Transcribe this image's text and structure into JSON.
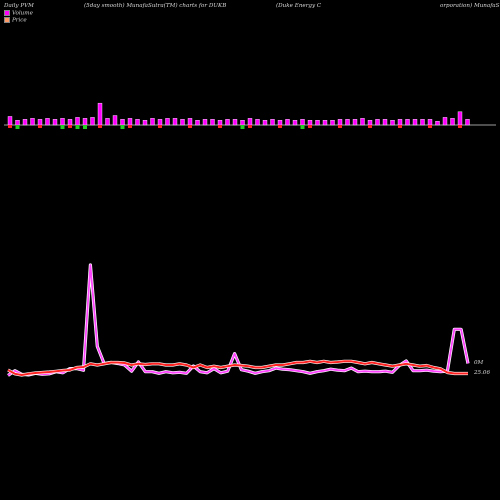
{
  "header": {
    "left": "Daily PVM",
    "center": "(5day smooth) MunafaSutra(TM) charts for DUKB",
    "right_a": "(Duke Energy C",
    "right_b": "orporation) MunafaS"
  },
  "legend": [
    {
      "label": "Volume",
      "color": "#ff00ff"
    },
    {
      "label": "Price",
      "color": "#ff9966"
    }
  ],
  "chart_data": {
    "type": "line",
    "volume_bars": {
      "heights": [
        9,
        5,
        6,
        7,
        6,
        7,
        6,
        7,
        6,
        8,
        7,
        8,
        23,
        7,
        10,
        6,
        7,
        6,
        5,
        7,
        6,
        7,
        7,
        6,
        7,
        5,
        6,
        6,
        5,
        6,
        6,
        5,
        7,
        6,
        5,
        6,
        5,
        6,
        5,
        6,
        5,
        5,
        5,
        5,
        6,
        6,
        6,
        7,
        5,
        6,
        6,
        5,
        6,
        6,
        6,
        6,
        6,
        4,
        8,
        7,
        14,
        6
      ],
      "down": [
        false,
        true,
        false,
        false,
        false,
        false,
        false,
        true,
        false,
        true,
        true,
        false,
        false,
        false,
        false,
        true,
        false,
        false,
        false,
        false,
        false,
        false,
        false,
        false,
        false,
        false,
        false,
        false,
        false,
        false,
        false,
        true,
        false,
        false,
        false,
        false,
        false,
        false,
        false,
        true,
        false,
        false,
        false,
        false,
        false,
        false,
        false,
        false,
        false,
        false,
        false,
        false,
        false,
        false,
        false,
        false,
        false,
        false,
        false,
        false,
        false,
        false
      ]
    },
    "series": [
      {
        "color": "#ff44ff",
        "values": [
          7,
          16,
          9,
          8,
          11,
          9,
          10,
          14,
          12,
          20,
          20,
          17,
          220,
          63,
          30,
          32,
          30,
          27,
          15,
          33,
          14,
          14,
          11,
          14,
          12,
          13,
          11,
          25,
          14,
          12,
          20,
          12,
          15,
          49,
          18,
          15,
          11,
          14,
          16,
          21,
          19,
          18,
          16,
          14,
          11,
          14,
          16,
          19,
          17,
          16,
          21,
          14,
          15,
          14,
          14,
          15,
          13,
          26,
          35,
          16,
          16,
          17,
          15,
          14,
          15,
          96,
          96,
          30
        ],
        "end_label": "0M"
      },
      {
        "color": "#ff2222",
        "values": [
          25.2,
          25.05,
          25.0,
          25.05,
          25.08,
          25.1,
          25.12,
          25.15,
          25.18,
          25.2,
          25.3,
          25.32,
          25.45,
          25.4,
          25.45,
          25.5,
          25.5,
          25.48,
          25.4,
          25.45,
          25.42,
          25.45,
          25.45,
          25.4,
          25.4,
          25.45,
          25.4,
          25.3,
          25.4,
          25.3,
          25.35,
          25.3,
          25.35,
          25.4,
          25.38,
          25.35,
          25.3,
          25.3,
          25.35,
          25.4,
          25.4,
          25.45,
          25.5,
          25.5,
          25.55,
          25.5,
          25.55,
          25.5,
          25.52,
          25.55,
          25.55,
          25.5,
          25.45,
          25.5,
          25.45,
          25.4,
          25.35,
          25.4,
          25.45,
          25.4,
          25.35,
          25.38,
          25.3,
          25.25,
          25.1,
          25.06,
          25.06,
          25.06
        ],
        "end_label": "25.06"
      }
    ]
  }
}
